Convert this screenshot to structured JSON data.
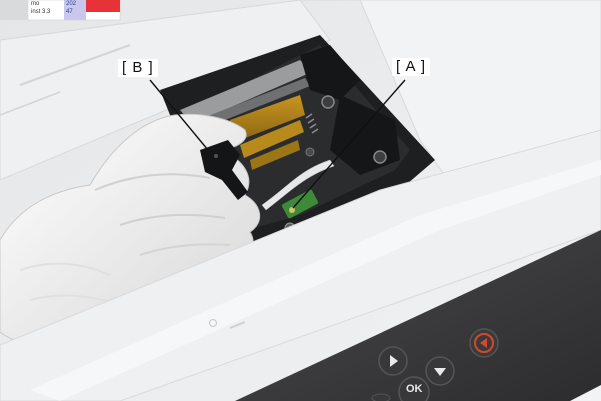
{
  "callouts": {
    "a": "[ A ]",
    "b": "[ B ]"
  },
  "control_panel": {
    "ok_label": "OK"
  },
  "label_sticker": {
    "line1": "mo",
    "line2": "inst 3.3",
    "code1": "202",
    "code2": "47"
  },
  "colors": {
    "printer_body": "#ececec",
    "panel_dark": "#3a3a3c",
    "stop_button": "#d24a2a",
    "glove": "#f2f2f2",
    "sensor_board": "#3f8a3a"
  },
  "icons": {
    "right_arrow": "play-right-icon",
    "down_arrow": "play-down-icon",
    "stop": "stop-icon"
  }
}
